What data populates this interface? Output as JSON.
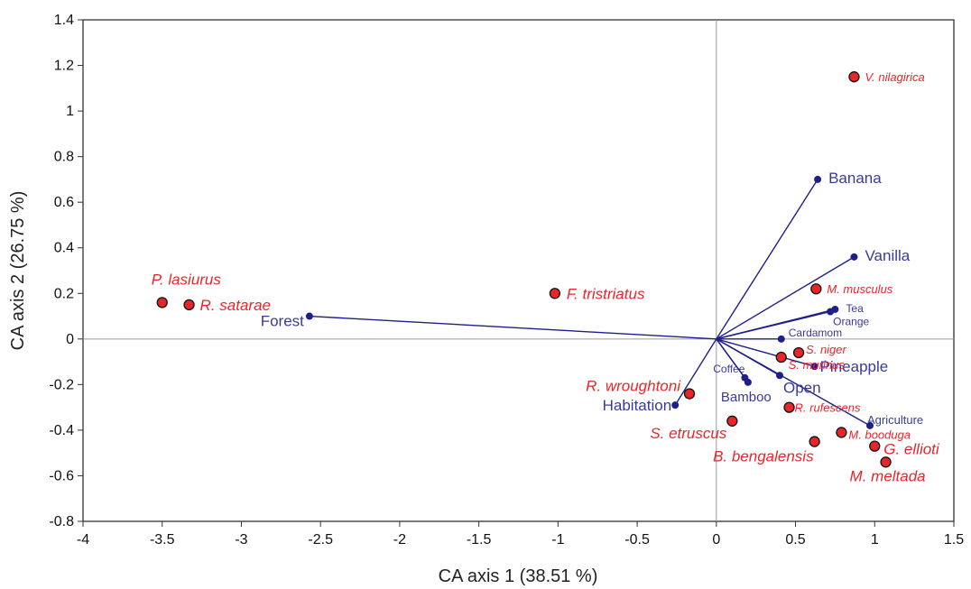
{
  "chart_data": {
    "type": "scatter",
    "title": "",
    "xlabel": "CA axis 1 (38.51 %)",
    "ylabel": "CA axis 2 (26.75 %)",
    "xlim": [
      -4,
      1.5
    ],
    "ylim": [
      -0.8,
      1.4
    ],
    "xticks": [
      -4,
      -3.5,
      -3,
      -2.5,
      -2,
      -1.5,
      -1,
      -0.5,
      0,
      0.5,
      1,
      1.5
    ],
    "yticks": [
      1.4,
      1.2,
      1,
      0.8,
      0.6,
      0.4,
      0.2,
      0,
      -0.2,
      -0.4,
      -0.6,
      -0.8
    ],
    "grid": false,
    "origin_crosshair": true,
    "colors": {
      "species": "#e8262a",
      "environment": "#1f1f8a",
      "env_label": "#3a3a9a"
    },
    "species": [
      {
        "label": "V. nilagirica",
        "x": 0.87,
        "y": 1.15
      },
      {
        "label": "P. lasiurus",
        "x": -3.5,
        "y": 0.16
      },
      {
        "label": "R. satarae",
        "x": -3.33,
        "y": 0.15
      },
      {
        "label": "F. tristriatus",
        "x": -1.02,
        "y": 0.2
      },
      {
        "label": "M. musculus",
        "x": 0.63,
        "y": 0.22
      },
      {
        "label": "S. niger",
        "x": 0.52,
        "y": -0.06
      },
      {
        "label": "S. murinus",
        "x": 0.41,
        "y": -0.08
      },
      {
        "label": "R. wroughtoni",
        "x": -0.17,
        "y": -0.24
      },
      {
        "label": "R. rufescens",
        "x": 0.46,
        "y": -0.3
      },
      {
        "label": "S. etruscus",
        "x": 0.1,
        "y": -0.36
      },
      {
        "label": "M. booduga",
        "x": 0.79,
        "y": -0.41
      },
      {
        "label": "B. bengalensis",
        "x": 0.62,
        "y": -0.45
      },
      {
        "label": "G. ellioti",
        "x": 1.0,
        "y": -0.47
      },
      {
        "label": "M. meltada",
        "x": 1.07,
        "y": -0.54
      }
    ],
    "environment": [
      {
        "label": "Banana",
        "x": 0.64,
        "y": 0.7
      },
      {
        "label": "Vanilla",
        "x": 0.87,
        "y": 0.36
      },
      {
        "label": "Tea",
        "x": 0.75,
        "y": 0.13
      },
      {
        "label": "Orange",
        "x": 0.72,
        "y": 0.12
      },
      {
        "label": "Cardamom",
        "x": 0.41,
        "y": 0.0
      },
      {
        "label": "Pineapple",
        "x": 0.62,
        "y": -0.12
      },
      {
        "label": "Open",
        "x": 0.4,
        "y": -0.16
      },
      {
        "label": "Coffee",
        "x": 0.18,
        "y": -0.17
      },
      {
        "label": "Bamboo",
        "x": 0.2,
        "y": -0.19
      },
      {
        "label": "Agriculture",
        "x": 0.97,
        "y": -0.38
      },
      {
        "label": "Habitation",
        "x": -0.26,
        "y": -0.29
      },
      {
        "label": "Forest",
        "x": -2.57,
        "y": 0.1
      }
    ]
  }
}
